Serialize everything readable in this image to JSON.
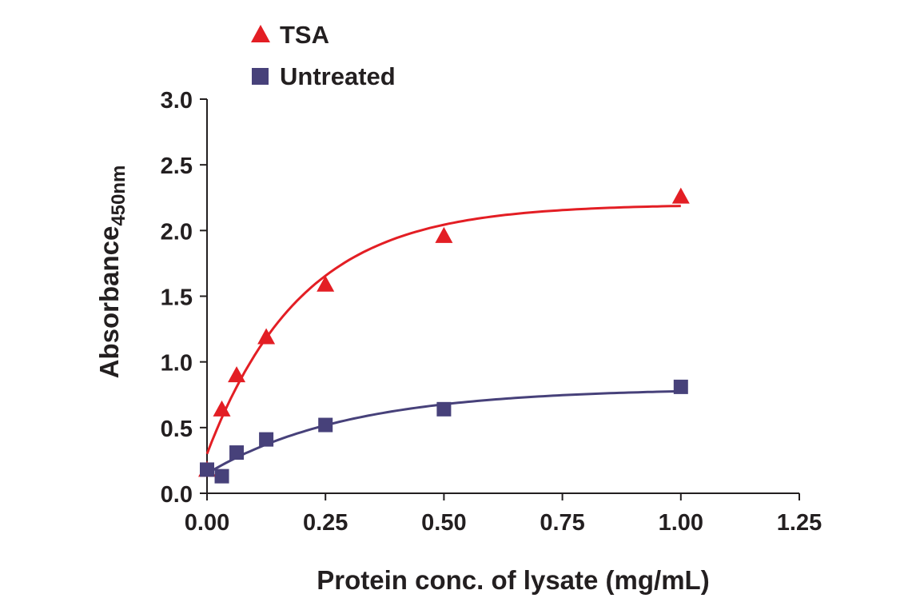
{
  "chart_data": {
    "type": "scatter",
    "xlabel": "Protein conc. of lysate (mg/mL)",
    "ylabel": "Absorbance",
    "ylabel_subscript": "450nm",
    "xlim": [
      0,
      1.25
    ],
    "ylim": [
      0,
      3.0
    ],
    "xticks": [
      "0.00",
      "0.25",
      "0.50",
      "0.75",
      "1.00",
      "1.25"
    ],
    "yticks": [
      "0.0",
      "0.5",
      "1.0",
      "1.5",
      "2.0",
      "2.5",
      "3.0"
    ],
    "grid": false,
    "legend_position": "top-left",
    "series": [
      {
        "name": "TSA",
        "color": "#e31e24",
        "marker": "triangle",
        "x": [
          0,
          0.03125,
          0.0625,
          0.125,
          0.25,
          0.5,
          1.0
        ],
        "y": [
          0.18,
          0.64,
          0.9,
          1.19,
          1.59,
          1.96,
          2.26
        ]
      },
      {
        "name": "Untreated",
        "color": "#47417a",
        "marker": "square",
        "x": [
          0,
          0.03125,
          0.0625,
          0.125,
          0.25,
          0.5,
          1.0
        ],
        "y": [
          0.18,
          0.13,
          0.31,
          0.41,
          0.52,
          0.64,
          0.81
        ]
      }
    ]
  }
}
